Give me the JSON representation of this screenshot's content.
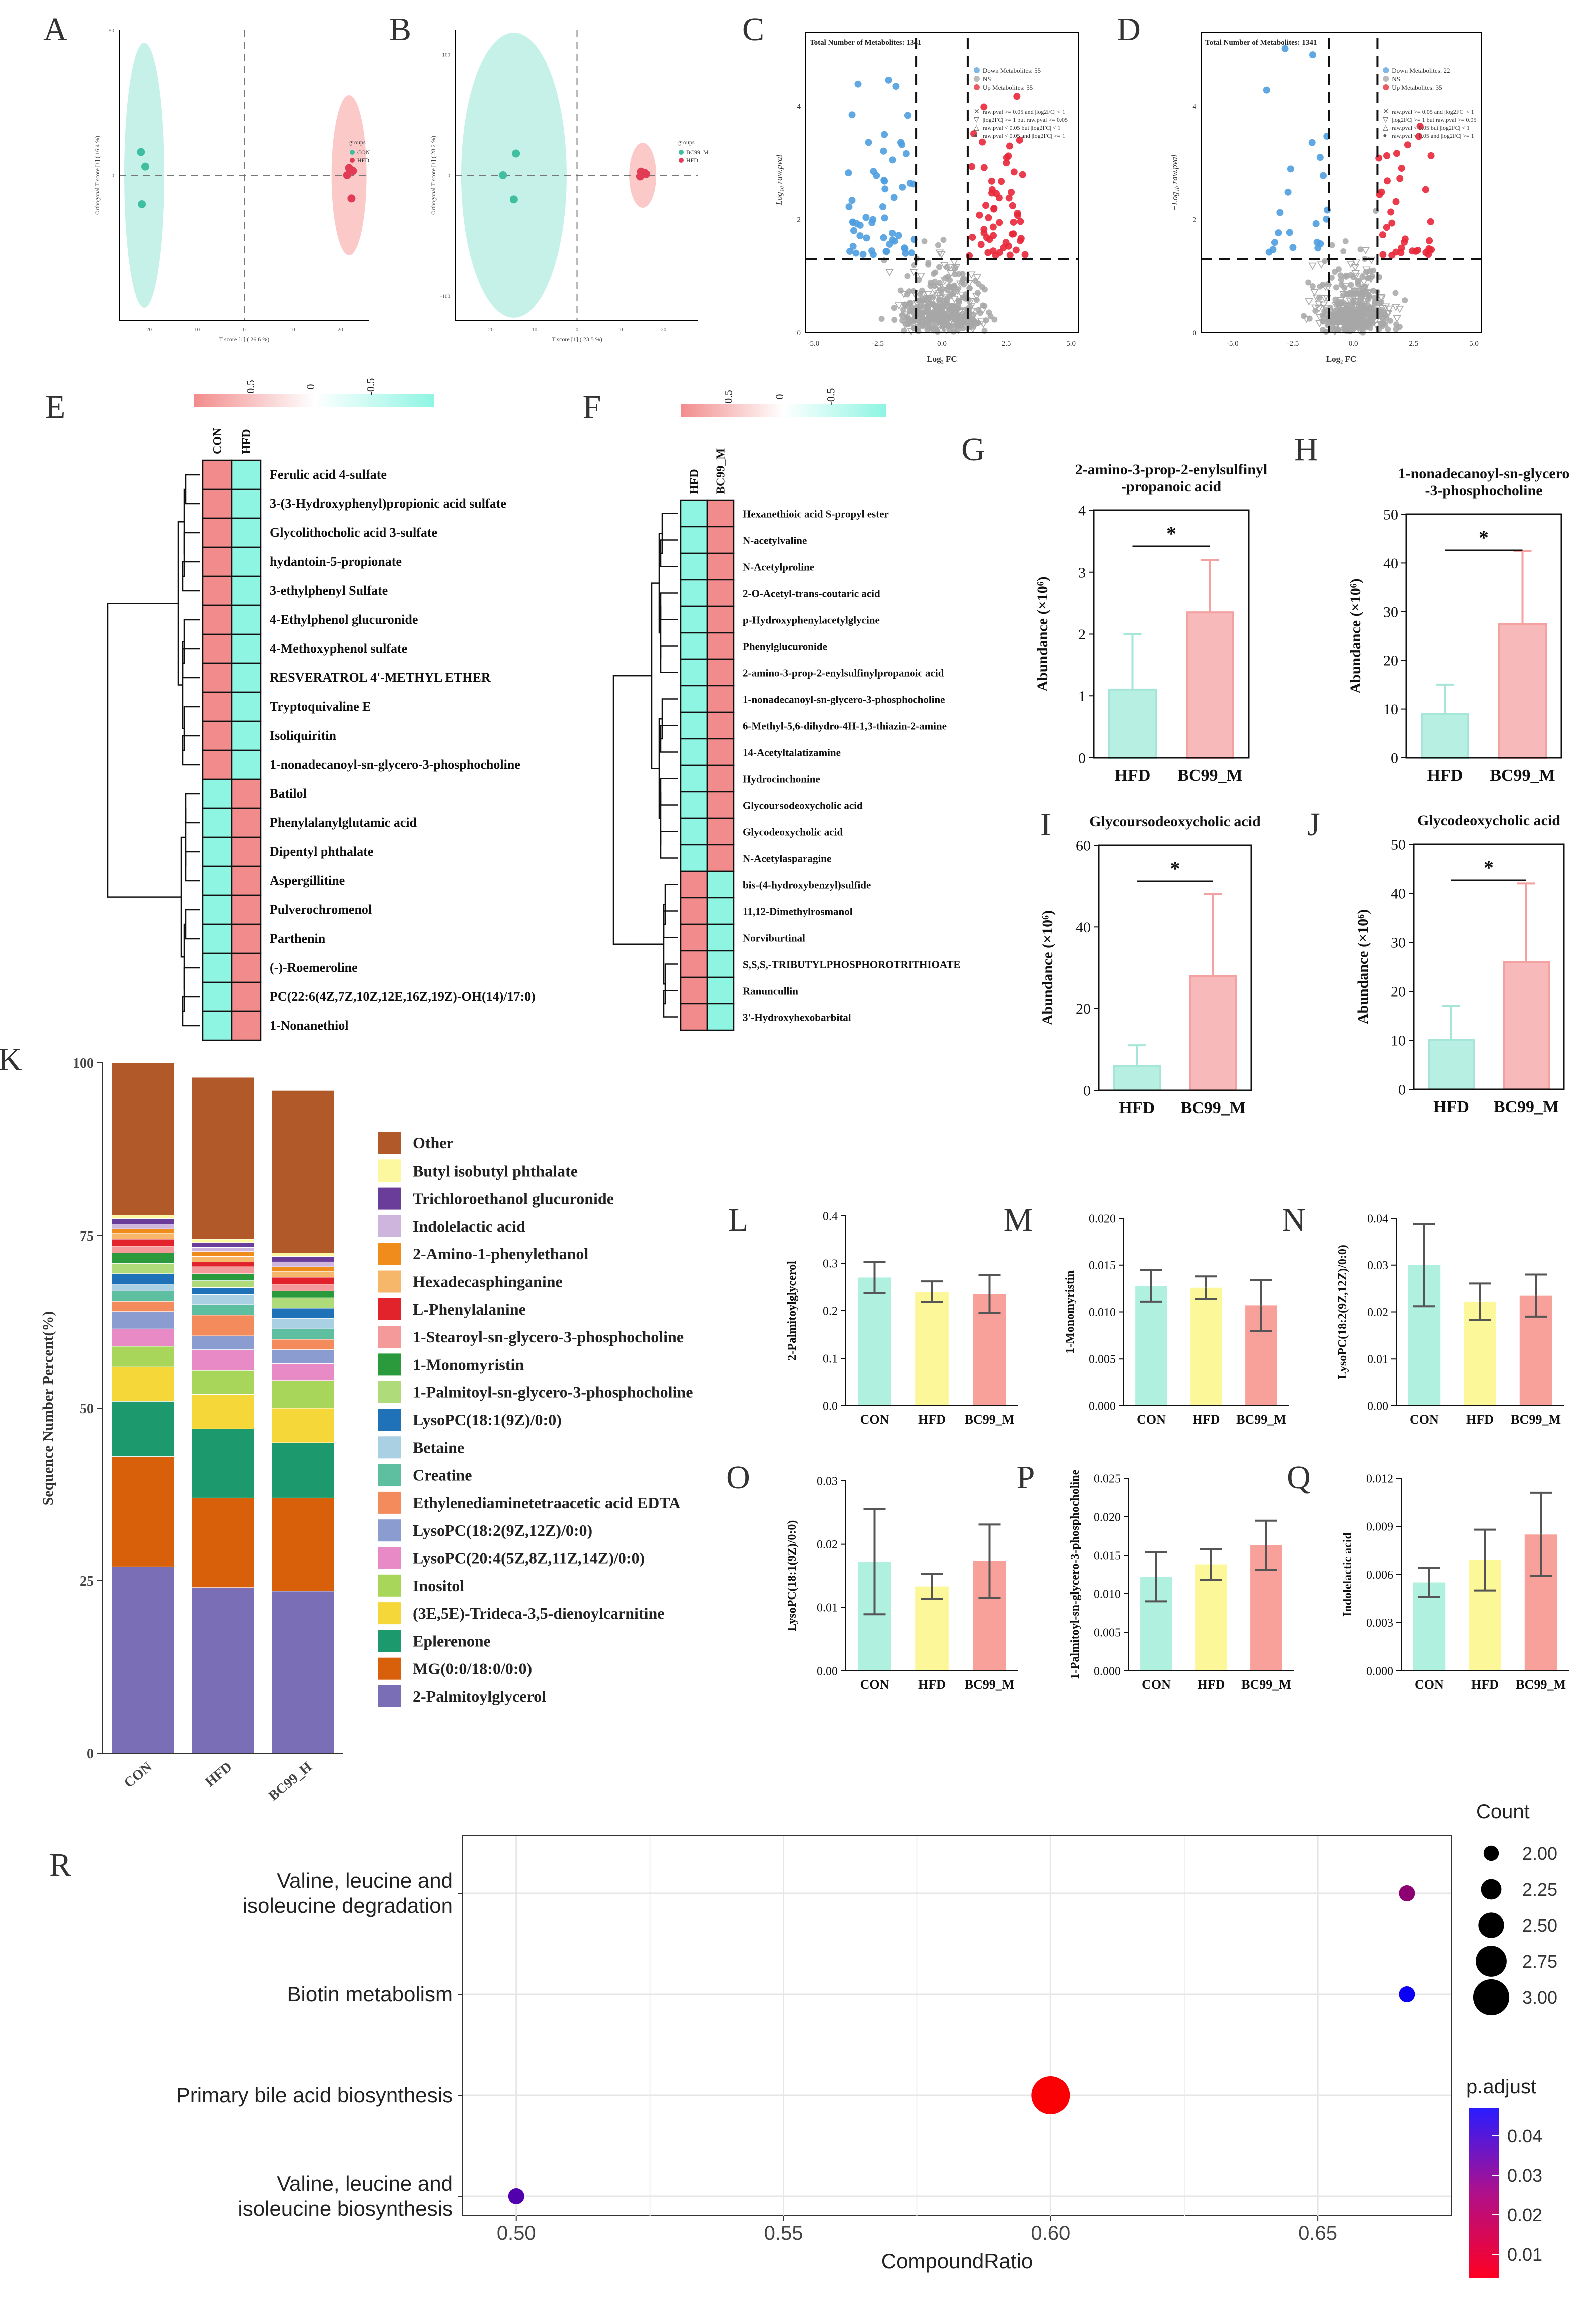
{
  "panel_labels": [
    "A",
    "B",
    "C",
    "D",
    "E",
    "F",
    "G",
    "H",
    "I",
    "J",
    "K",
    "L",
    "M",
    "N",
    "O",
    "P",
    "Q",
    "R"
  ],
  "colors": {
    "teal": "#b3ece2",
    "pink": "#f9b7b5",
    "yellow": "#fbf79b",
    "red_bar": "#f7a0a0",
    "pt_teal": "#3fbfa0",
    "pt_red": "#e23b55",
    "blue_pt": "#4f9fe0",
    "red_pt": "#e8273a",
    "grey_pt": "#a7a7a7",
    "heat_pink": "#f28c8c",
    "heat_teal": "#8ef5e3"
  },
  "chart_data": [
    {
      "id": "A",
      "type": "scatter",
      "xlabel": "T score [1] ( 26.6 %)",
      "ylabel": "Orthogonal T score [1] ( 16.4 %)",
      "xlim": [
        -26,
        26
      ],
      "ylim": [
        -50,
        50
      ],
      "xticks": [
        -20,
        -10,
        0,
        10,
        20
      ],
      "yticks": [
        50,
        0
      ],
      "legend_title": "groups",
      "legend": [
        "CON",
        "HFD"
      ],
      "series": [
        {
          "name": "CON",
          "x": [
            -21.5,
            -20.6,
            -21.3
          ],
          "y": [
            8,
            3,
            -10
          ]
        },
        {
          "name": "HFD",
          "x": [
            21.8,
            22.6,
            21.4,
            22.3
          ],
          "y": [
            2.5,
            1.5,
            0,
            -8
          ]
        }
      ]
    },
    {
      "id": "B",
      "type": "scatter",
      "xlabel": "T score [1] ( 23.5 %)",
      "ylabel": "Orthogonal T score [1] ( 28.2 %)",
      "xlim": [
        -28,
        28
      ],
      "ylim": [
        -120,
        120
      ],
      "xticks": [
        -20,
        -10,
        0,
        10,
        20
      ],
      "yticks": [
        100,
        0,
        -100
      ],
      "legend_title": "groups",
      "legend": [
        "BC99_M",
        "HFD"
      ],
      "series": [
        {
          "name": "BC99_M",
          "x": [
            -14,
            -17,
            -14.5
          ],
          "y": [
            18,
            0,
            -20
          ]
        },
        {
          "name": "HFD",
          "x": [
            14.8,
            15.6,
            14.6,
            16
          ],
          "y": [
            3,
            2,
            -1,
            1
          ]
        }
      ]
    },
    {
      "id": "C",
      "type": "scatter",
      "subtype": "volcano",
      "title": "Total Number of Metabolites: 1341",
      "xlabel": "Log₂ FC",
      "ylabel": "−Log₁₀ raw.pval",
      "xlim": [
        -5.3,
        5.3
      ],
      "ylim": [
        0,
        5.3
      ],
      "xticks": [
        -5.0,
        -2.5,
        0.0,
        2.5,
        5.0
      ],
      "yticks": [
        0,
        2,
        4
      ],
      "fc_cutoffs": [
        -1,
        1
      ],
      "p_cutoff": 1.3,
      "legend": [
        "Down Metabolites: 55",
        "NS",
        "Up Metabolites: 55"
      ],
      "shape_legend": [
        "raw.pval >= 0.05 and |log2FC| < 1",
        "|log2FC| >= 1 but raw.pval >= 0.05",
        "raw.pval < 0.05 but |log2FC| < 1",
        "raw.pval < 0.05 and |log2FC| >= 1"
      ]
    },
    {
      "id": "D",
      "type": "scatter",
      "subtype": "volcano",
      "title": "Total Number of Metabolites: 1341",
      "xlabel": "Log₂ FC",
      "ylabel": "−Log₁₀ raw.pval",
      "xlim": [
        -6.3,
        5.3
      ],
      "ylim": [
        0,
        5.3
      ],
      "xticks": [
        -5.0,
        -2.5,
        0.0,
        2.5,
        5.0
      ],
      "yticks": [
        0,
        2,
        4
      ],
      "fc_cutoffs": [
        -1,
        1
      ],
      "p_cutoff": 1.3,
      "legend": [
        "Down Metabolites: 22",
        "NS",
        "Up Metabolites: 35"
      ],
      "shape_legend": [
        "raw.pval >= 0.05 and |log2FC| < 1",
        "|log2FC| >= 1 but raw.pval >= 0.05",
        "raw.pval < 0.05 but |log2FC| < 1",
        "raw.pval < 0.05 and |log2FC| >= 1"
      ]
    },
    {
      "id": "E",
      "type": "heatmap",
      "scale_ticks": [
        "0.5",
        "0",
        "-0.5"
      ],
      "columns": [
        "CON",
        "HFD"
      ],
      "rows": [
        "Ferulic acid 4-sulfate",
        "3-(3-Hydroxyphenyl)propionic acid sulfate",
        "Glycolithocholic acid 3-sulfate",
        "hydantoin-5-propionate",
        "3-ethylphenyl Sulfate",
        "4-Ethylphenol glucuronide",
        "4-Methoxyphenol sulfate",
        "RESVERATROL 4'-METHYL ETHER",
        "Tryptoquivaline E",
        "Isoliquiritin",
        "1-nonadecanoyl-sn-glycero-3-phosphocholine",
        "Batilol",
        "Phenylalanylglutamic acid",
        "Dipentyl phthalate",
        "Aspergillitine",
        "Pulverochromenol",
        "Parthenin",
        "(-)-Roemeroline",
        "PC(22:6(4Z,7Z,10Z,12E,16Z,19Z)-OH(14)/17:0)",
        "1-Nonanethiol"
      ],
      "values": [
        [
          0.5,
          -0.5
        ],
        [
          0.5,
          -0.5
        ],
        [
          0.5,
          -0.5
        ],
        [
          0.5,
          -0.5
        ],
        [
          0.5,
          -0.5
        ],
        [
          0.5,
          -0.5
        ],
        [
          0.5,
          -0.5
        ],
        [
          0.5,
          -0.5
        ],
        [
          0.5,
          -0.5
        ],
        [
          0.5,
          -0.5
        ],
        [
          0.5,
          -0.5
        ],
        [
          -0.5,
          0.5
        ],
        [
          -0.5,
          0.5
        ],
        [
          -0.5,
          0.5
        ],
        [
          -0.5,
          0.5
        ],
        [
          -0.5,
          0.5
        ],
        [
          -0.5,
          0.5
        ],
        [
          -0.5,
          0.5
        ],
        [
          -0.5,
          0.5
        ],
        [
          -0.5,
          0.5
        ]
      ]
    },
    {
      "id": "F",
      "type": "heatmap",
      "scale_ticks": [
        "0.5",
        "0",
        "-0.5"
      ],
      "columns": [
        "HFD",
        "BC99_M"
      ],
      "rows": [
        "Hexanethioic acid S-propyl ester",
        "N-acetylvaline",
        "N-Acetylproline",
        "2-O-Acetyl-trans-coutaric acid",
        "p-Hydroxyphenylacetylglycine",
        "Phenylglucuronide",
        "2-amino-3-prop-2-enylsulfinylpropanoic acid",
        "1-nonadecanoyl-sn-glycero-3-phosphocholine",
        "6-Methyl-5,6-dihydro-4H-1,3-thiazin-2-amine",
        "14-Acetyltalatizamine",
        "Hydrocinchonine",
        "Glycoursodeoxycholic acid",
        "Glycodeoxycholic acid",
        "N-Acetylasparagine",
        "bis-(4-hydroxybenzyl)sulfide",
        "11,12-Dimethylrosmanol",
        "Norviburtinal",
        "S,S,S,-TRIBUTYLPHOSPHOROTRITHIOATE",
        "Ranuncullin",
        "3'-Hydroxyhexobarbital"
      ],
      "values": [
        [
          -0.5,
          0.5
        ],
        [
          -0.5,
          0.5
        ],
        [
          -0.5,
          0.5
        ],
        [
          -0.5,
          0.5
        ],
        [
          -0.5,
          0.5
        ],
        [
          -0.5,
          0.5
        ],
        [
          -0.5,
          0.5
        ],
        [
          -0.5,
          0.5
        ],
        [
          -0.5,
          0.5
        ],
        [
          -0.5,
          0.5
        ],
        [
          -0.5,
          0.5
        ],
        [
          -0.5,
          0.5
        ],
        [
          -0.5,
          0.5
        ],
        [
          -0.5,
          0.5
        ],
        [
          0.5,
          -0.5
        ],
        [
          0.5,
          -0.5
        ],
        [
          0.5,
          -0.5
        ],
        [
          0.5,
          -0.5
        ],
        [
          0.5,
          -0.5
        ],
        [
          0.5,
          -0.5
        ]
      ]
    },
    {
      "id": "G",
      "type": "bar",
      "title_lines": [
        "2-amino-3-prop-2-enylsulfinyl",
        "-propanoic acid"
      ],
      "ylabel": "Abundance (×10⁶)",
      "categories": [
        "HFD",
        "BC99_M"
      ],
      "values": [
        1.1,
        2.35
      ],
      "errors": [
        0.9,
        0.85
      ],
      "ylim": [
        0,
        4
      ],
      "yticks": [
        0,
        1,
        2,
        3,
        4
      ],
      "significance": "*"
    },
    {
      "id": "H",
      "type": "bar",
      "title_lines": [
        "1-nonadecanoyl-sn-glycero",
        "-3-phosphocholine"
      ],
      "ylabel": "Abundance (×10⁶)",
      "categories": [
        "HFD",
        "BC99_M"
      ],
      "values": [
        9,
        27.5
      ],
      "errors": [
        6,
        15
      ],
      "ylim": [
        0,
        50
      ],
      "yticks": [
        0,
        10,
        20,
        30,
        40,
        50
      ],
      "significance": "*"
    },
    {
      "id": "I",
      "type": "bar",
      "title_lines": [
        "Glycoursodeoxycholic acid"
      ],
      "ylabel": "Abundance (×10⁶)",
      "categories": [
        "HFD",
        "BC99_M"
      ],
      "values": [
        6,
        28
      ],
      "errors": [
        5,
        20
      ],
      "ylim": [
        0,
        60
      ],
      "yticks": [
        0,
        20,
        40,
        60
      ],
      "significance": "*"
    },
    {
      "id": "J",
      "type": "bar",
      "title_lines": [
        "Glycodeoxycholic acid"
      ],
      "ylabel": "Abundance (×10⁶)",
      "categories": [
        "HFD",
        "BC99_M"
      ],
      "values": [
        10,
        26
      ],
      "errors": [
        7,
        16
      ],
      "ylim": [
        0,
        50
      ],
      "yticks": [
        0,
        10,
        20,
        30,
        40,
        50
      ],
      "significance": "*"
    },
    {
      "id": "K",
      "type": "bar",
      "subtype": "stacked",
      "ylabel": "Sequence Number Percent(%)",
      "categories": [
        "CON",
        "HFD",
        "BC99_H"
      ],
      "ylim": [
        0,
        100
      ],
      "yticks": [
        0,
        25,
        50,
        75,
        100
      ],
      "series": [
        {
          "name": "2-Palmitoylglycerol",
          "color": "#7a6fb6",
          "values": [
            27,
            24,
            23.5
          ]
        },
        {
          "name": "MG(0:0/18:0/0:0)",
          "color": "#d9600b",
          "values": [
            16,
            13,
            13.5
          ]
        },
        {
          "name": "Eplerenone",
          "color": "#1c9a6e",
          "values": [
            8,
            10,
            8
          ]
        },
        {
          "name": "(3E,5E)-Trideca-3,5-dienoylcarnitine",
          "color": "#f6d73a",
          "values": [
            5,
            5,
            5
          ]
        },
        {
          "name": "Inositol",
          "color": "#a8d65a",
          "values": [
            3,
            3.5,
            4
          ]
        },
        {
          "name": "LysoPC(20:4(5Z,8Z,11Z,14Z)/0:0)",
          "color": "#e88ac6",
          "values": [
            2.5,
            3,
            2.5
          ]
        },
        {
          "name": "LysoPC(18:2(9Z,12Z)/0:0)",
          "color": "#8b9dd0",
          "values": [
            2.5,
            2,
            2
          ]
        },
        {
          "name": "Ethylenediaminetetraacetic acid EDTA",
          "color": "#f48b5c",
          "values": [
            1.5,
            3,
            1.5
          ]
        },
        {
          "name": "Creatine",
          "color": "#5dbf9f",
          "values": [
            1.5,
            1.5,
            1.5
          ]
        },
        {
          "name": "Betaine",
          "color": "#a9d0e3",
          "values": [
            1,
            1.5,
            1.5
          ]
        },
        {
          "name": "LysoPC(18:1(9Z)/0:0)",
          "color": "#1f71b8",
          "values": [
            1.5,
            1,
            1.5
          ]
        },
        {
          "name": "1-Palmitoyl-sn-glycero-3-phosphocholine",
          "color": "#b0db7b",
          "values": [
            1.5,
            1,
            1.5
          ]
        },
        {
          "name": "1-Monomyristin",
          "color": "#2a9a3c",
          "values": [
            1.5,
            1,
            1
          ]
        },
        {
          "name": "1-Stearoyl-sn-glycero-3-phosphocholine",
          "color": "#f49a9a",
          "values": [
            1,
            1,
            1
          ]
        },
        {
          "name": "L-Phenylalanine",
          "color": "#e3232b",
          "values": [
            1,
            0.7,
            1
          ]
        },
        {
          "name": "Hexadecasphinganine",
          "color": "#f7b76b",
          "values": [
            0.8,
            0.8,
            0.8
          ]
        },
        {
          "name": "2-Amino-1-phenylethanol",
          "color": "#f08c1c",
          "values": [
            0.7,
            0.7,
            0.7
          ]
        },
        {
          "name": "Indolelactic acid",
          "color": "#cdb5dd",
          "values": [
            0.7,
            0.6,
            0.7
          ]
        },
        {
          "name": "Trichloroethanol glucuronide",
          "color": "#6a3d9a",
          "values": [
            0.8,
            0.7,
            0.8
          ]
        },
        {
          "name": "Butyl isobutyl phthalate",
          "color": "#fbf8a0",
          "values": [
            0.5,
            0.5,
            0.5
          ]
        },
        {
          "name": "Other",
          "color": "#b15928",
          "values": [
            22,
            23.4,
            23.5
          ]
        }
      ]
    },
    {
      "id": "L",
      "type": "bar",
      "ylabel": "2-Palmitoylglycerol",
      "categories": [
        "CON",
        "HFD",
        "BC99_M"
      ],
      "values": [
        0.27,
        0.24,
        0.235
      ],
      "errors": [
        0.033,
        0.022,
        0.04
      ],
      "ylim": [
        0,
        0.4
      ],
      "yticks": [
        "0.0",
        "0.1",
        "0.2",
        "0.3",
        "0.4"
      ]
    },
    {
      "id": "M",
      "type": "bar",
      "ylabel": "1-Monomyristin",
      "categories": [
        "CON",
        "HFD",
        "BC99_M"
      ],
      "values": [
        0.0128,
        0.0126,
        0.0107
      ],
      "errors": [
        0.0017,
        0.0012,
        0.0027
      ],
      "ylim": [
        0,
        0.02
      ],
      "yticks": [
        "0.000",
        "0.005",
        "0.010",
        "0.015",
        "0.020"
      ]
    },
    {
      "id": "N",
      "type": "bar",
      "ylabel": "LysoPC(18:2(9Z,12Z)/0:0)",
      "categories": [
        "CON",
        "HFD",
        "BC99_M"
      ],
      "values": [
        0.03,
        0.0222,
        0.0235
      ],
      "errors": [
        0.0088,
        0.0039,
        0.0045
      ],
      "ylim": [
        0,
        0.04
      ],
      "yticks": [
        "0.00",
        "0.01",
        "0.02",
        "0.03",
        "0.04"
      ]
    },
    {
      "id": "O",
      "type": "bar",
      "ylabel": "LysoPC(18:1(9Z)/0:0)",
      "categories": [
        "CON",
        "HFD",
        "BC99_M"
      ],
      "values": [
        0.0172,
        0.0133,
        0.0173
      ],
      "errors": [
        0.0083,
        0.002,
        0.0058
      ],
      "ylim": [
        0,
        0.03
      ],
      "yticks": [
        "0.00",
        "0.01",
        "0.02",
        "0.03"
      ]
    },
    {
      "id": "P",
      "type": "bar",
      "ylabel": "1-Palmitoyl-sn-glycero-3-phosphocholine",
      "categories": [
        "CON",
        "HFD",
        "BC99_M"
      ],
      "values": [
        0.0122,
        0.0138,
        0.0163
      ],
      "errors": [
        0.0032,
        0.002,
        0.0032
      ],
      "ylim": [
        0,
        0.025
      ],
      "yticks": [
        "0.000",
        "0.005",
        "0.010",
        "0.015",
        "0.020",
        "0.025"
      ]
    },
    {
      "id": "Q",
      "type": "bar",
      "ylabel": "Indolelactic acid",
      "categories": [
        "CON",
        "HFD",
        "BC99_M"
      ],
      "values": [
        0.0055,
        0.0069,
        0.0085
      ],
      "errors": [
        0.0009,
        0.0019,
        0.0026
      ],
      "ylim": [
        0,
        0.012
      ],
      "yticks": [
        "0.000",
        "0.003",
        "0.006",
        "0.009",
        "0.012"
      ]
    },
    {
      "id": "R",
      "type": "scatter",
      "subtype": "dotplot",
      "xlabel": "CompoundRatio",
      "xlim": [
        0.49,
        0.675
      ],
      "xticks": [
        "0.50",
        "0.55",
        "0.60",
        "0.65"
      ],
      "categories": [
        [
          "Valine, leucine and",
          "isoleucine degradation"
        ],
        [
          "Biotin metabolism"
        ],
        [
          "Primary bile acid biosynthesis"
        ],
        [
          "Valine, leucine and",
          "isoleucine biosynthesis"
        ]
      ],
      "x": [
        0.6667,
        0.6667,
        0.6,
        0.5
      ],
      "count": [
        2,
        2,
        3,
        2
      ],
      "p_adjust": [
        0.022,
        0.046,
        0.002,
        0.033
      ],
      "size_legend_title": "Count",
      "size_legend": [
        "2.00",
        "2.25",
        "2.50",
        "2.75",
        "3.00"
      ],
      "color_legend_title": "p.adjust",
      "color_ticks": [
        "0.04",
        "0.03",
        "0.02",
        "0.01"
      ],
      "color_range": [
        0.001,
        0.048
      ]
    }
  ]
}
